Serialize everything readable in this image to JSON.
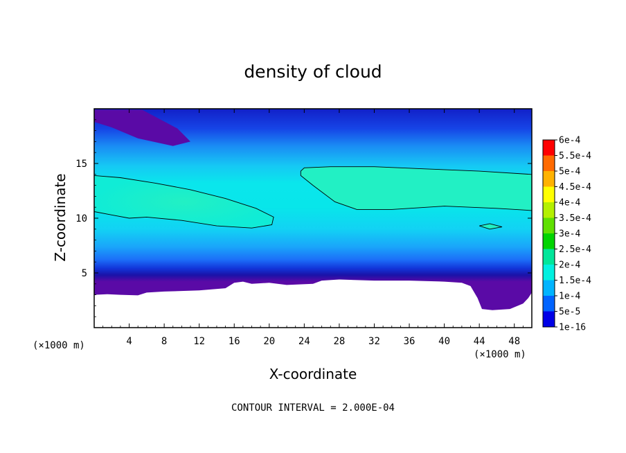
{
  "chart_data": {
    "type": "heatmap",
    "title": "density of cloud",
    "xlabel": "X-coordinate",
    "ylabel": "Z-coordinate",
    "x_unit_left": "(×1000 m)",
    "x_unit_right": "(×1000 m)",
    "xlim": [
      0,
      50
    ],
    "ylim": [
      0,
      20
    ],
    "x_ticks": [
      4,
      8,
      12,
      16,
      20,
      24,
      28,
      32,
      36,
      40,
      44,
      48
    ],
    "y_ticks": [
      5,
      10,
      15
    ],
    "footer": "CONTOUR INTERVAL = 2.000E-04",
    "colorbar": {
      "labels": [
        "6e-4",
        "5.5e-4",
        "5e-4",
        "4.5e-4",
        "4e-4",
        "3.5e-4",
        "3e-4",
        "2.5e-4",
        "2e-4",
        "1.5e-4",
        "1e-4",
        "5e-5",
        "1e-16"
      ],
      "colors": [
        "#ff0000",
        "#ff6a00",
        "#ffb200",
        "#ffff00",
        "#b4f000",
        "#60e000",
        "#00d400",
        "#00e69a",
        "#00f0e0",
        "#00b4ff",
        "#0064ff",
        "#0000e6",
        "#5000a0"
      ]
    },
    "contour_level": 0.0002,
    "bands": [
      {
        "name": "upper-left-minimum",
        "points": [
          [
            0,
            19.9
          ],
          [
            5.5,
            19.9
          ],
          [
            9.5,
            18.2
          ],
          [
            11,
            17
          ],
          [
            9,
            16.6
          ],
          [
            5,
            17.3
          ],
          [
            2,
            18.3
          ],
          [
            0,
            18.8
          ]
        ]
      },
      {
        "name": "lower-left-core",
        "points": [
          [
            0,
            13.9
          ],
          [
            3,
            13.7
          ],
          [
            7,
            13.2
          ],
          [
            11,
            12.6
          ],
          [
            15,
            11.8
          ],
          [
            18.5,
            10.9
          ],
          [
            20.5,
            10.1
          ],
          [
            20.3,
            9.4
          ],
          [
            18,
            9.1
          ],
          [
            14,
            9.3
          ],
          [
            10,
            9.8
          ],
          [
            6,
            10.1
          ],
          [
            4,
            10
          ],
          [
            0,
            10.6
          ]
        ]
      },
      {
        "name": "right-core",
        "points": [
          [
            23.6,
            14.3
          ],
          [
            24,
            14.6
          ],
          [
            27,
            14.7
          ],
          [
            32,
            14.7
          ],
          [
            38,
            14.5
          ],
          [
            44,
            14.3
          ],
          [
            50,
            14
          ],
          [
            50,
            10.7
          ],
          [
            46,
            10.9
          ],
          [
            40,
            11.1
          ],
          [
            34,
            10.8
          ],
          [
            30,
            10.8
          ],
          [
            27.5,
            11.5
          ],
          [
            25,
            13
          ],
          [
            23.6,
            13.9
          ]
        ]
      },
      {
        "name": "small-core",
        "points": [
          [
            44,
            9.3
          ],
          [
            45.2,
            9.5
          ],
          [
            46.6,
            9.2
          ],
          [
            45.2,
            9.0
          ]
        ]
      }
    ],
    "contours": [
      {
        "name": "left-contour",
        "points": [
          [
            0,
            13.9
          ],
          [
            3,
            13.7
          ],
          [
            7,
            13.2
          ],
          [
            11,
            12.6
          ],
          [
            15,
            11.8
          ],
          [
            18.5,
            10.9
          ],
          [
            20.5,
            10.1
          ],
          [
            20.3,
            9.4
          ],
          [
            18,
            9.1
          ],
          [
            14,
            9.3
          ],
          [
            10,
            9.8
          ],
          [
            6,
            10.1
          ],
          [
            4,
            10
          ],
          [
            2,
            10.3
          ],
          [
            0,
            10.6
          ]
        ]
      },
      {
        "name": "right-contour",
        "points": [
          [
            50,
            14
          ],
          [
            44,
            14.3
          ],
          [
            38,
            14.5
          ],
          [
            32,
            14.7
          ],
          [
            27,
            14.7
          ],
          [
            24,
            14.6
          ],
          [
            23.6,
            14.3
          ],
          [
            23.6,
            13.9
          ],
          [
            25,
            13
          ],
          [
            27.5,
            11.5
          ],
          [
            30,
            10.8
          ],
          [
            34,
            10.8
          ],
          [
            40,
            11.1
          ],
          [
            46,
            10.9
          ],
          [
            50,
            10.7
          ]
        ]
      },
      {
        "name": "small-contour",
        "points": [
          [
            44,
            9.3
          ],
          [
            45.2,
            9.5
          ],
          [
            46.6,
            9.2
          ],
          [
            45.2,
            9.0
          ],
          [
            44,
            9.3
          ]
        ]
      }
    ],
    "terrain": [
      [
        0,
        3.0
      ],
      [
        1.5,
        3.05
      ],
      [
        3,
        3.0
      ],
      [
        5,
        2.95
      ],
      [
        6,
        3.2
      ],
      [
        8,
        3.3
      ],
      [
        12,
        3.4
      ],
      [
        15,
        3.6
      ],
      [
        16,
        4.1
      ],
      [
        17,
        4.2
      ],
      [
        18,
        4.0
      ],
      [
        20,
        4.1
      ],
      [
        22,
        3.9
      ],
      [
        25,
        4.0
      ],
      [
        26,
        4.3
      ],
      [
        28,
        4.4
      ],
      [
        32,
        4.3
      ],
      [
        36,
        4.3
      ],
      [
        40,
        4.2
      ],
      [
        42,
        4.1
      ],
      [
        43,
        3.8
      ],
      [
        43.8,
        2.7
      ],
      [
        44.3,
        1.7
      ],
      [
        45.5,
        1.6
      ],
      [
        47.5,
        1.7
      ],
      [
        49,
        2.2
      ],
      [
        49.6,
        2.7
      ],
      [
        50,
        3.2
      ]
    ]
  }
}
